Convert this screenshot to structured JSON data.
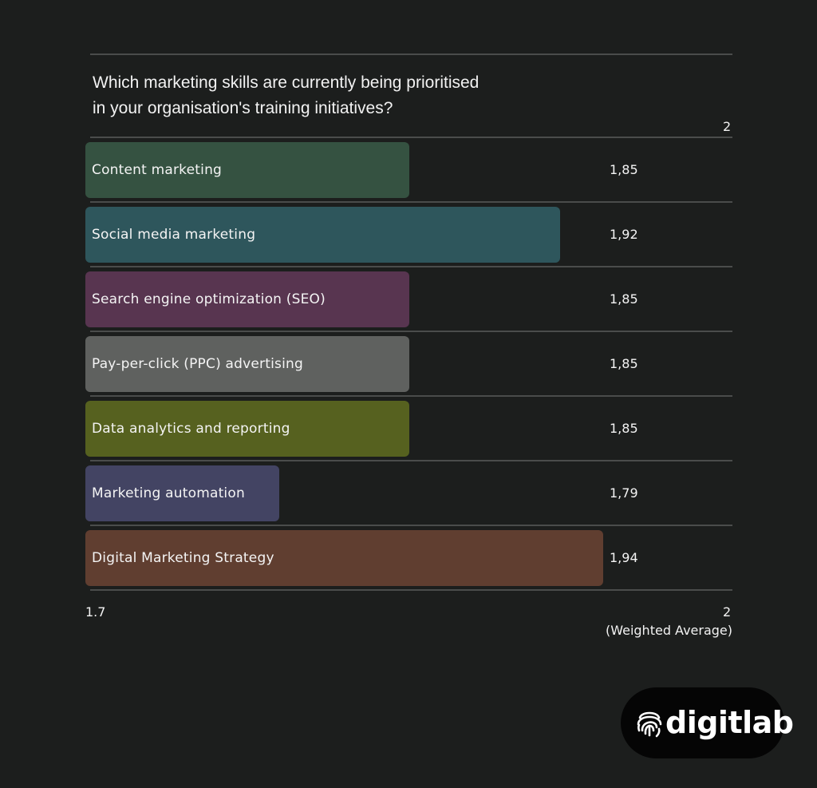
{
  "chart_data": {
    "type": "bar",
    "orientation": "horizontal",
    "title": "Which marketing skills are currently being prioritised\nin your organisation's training initiatives?",
    "categories": [
      "Content marketing",
      "Social media marketing",
      "Search engine optimization (SEO)",
      "Pay-per-click (PPC) advertising",
      "Data analytics and reporting",
      "Marketing automation",
      "Digital Marketing Strategy"
    ],
    "values": [
      1.85,
      1.92,
      1.85,
      1.85,
      1.85,
      1.79,
      1.94
    ],
    "value_labels": [
      "1,85",
      "1,92",
      "1,85",
      "1,85",
      "1,85",
      "1,79",
      "1,94"
    ],
    "colors": [
      "#355241",
      "#2e565c",
      "#583550",
      "#5f615f",
      "#56611f",
      "#434463",
      "#603e30"
    ],
    "xlim": [
      1.7,
      2
    ],
    "x_tick_labels": {
      "min": "1.7",
      "max": "2",
      "top": "2"
    },
    "xlabel": "(Weighted Average)",
    "grid": true
  },
  "branding": {
    "logo_text": "digitlab"
  }
}
